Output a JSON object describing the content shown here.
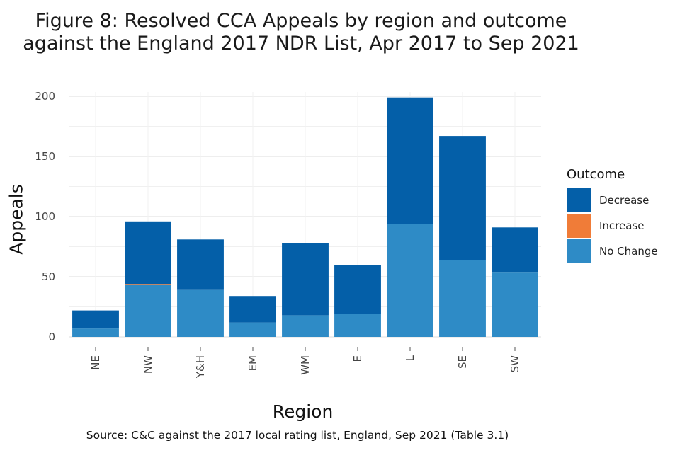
{
  "chart_data": {
    "type": "bar",
    "stacked": true,
    "title_line1": "Figure 8: Resolved CCA Appeals by region and outcome",
    "title_line2": "against the England 2017 NDR List, Apr 2017 to Sep 2021",
    "xlabel": "Region",
    "ylabel": "Appeals",
    "source": "Source: C&C against the 2017 local rating list, England, Sep 2021 (Table 3.1)",
    "categories": [
      "NE",
      "NW",
      "Y&H",
      "EM",
      "WM",
      "E",
      "L",
      "SE",
      "SW"
    ],
    "ylim": [
      0,
      200
    ],
    "yticks": [
      0,
      50,
      100,
      150,
      200
    ],
    "legend_title": "Outcome",
    "legend_position": "right",
    "series": [
      {
        "name": "No Change",
        "color": "#2e8bc6",
        "values": [
          7,
          43,
          39,
          12,
          18,
          19,
          94,
          64,
          54
        ]
      },
      {
        "name": "Increase",
        "color": "#f07c38",
        "values": [
          0,
          1,
          0,
          0,
          0,
          0,
          0,
          0,
          0
        ]
      },
      {
        "name": "Decrease",
        "color": "#045fa8",
        "values": [
          15,
          52,
          42,
          22,
          60,
          41,
          105,
          103,
          37
        ]
      }
    ],
    "legend_order": [
      "Decrease",
      "Increase",
      "No Change"
    ]
  }
}
